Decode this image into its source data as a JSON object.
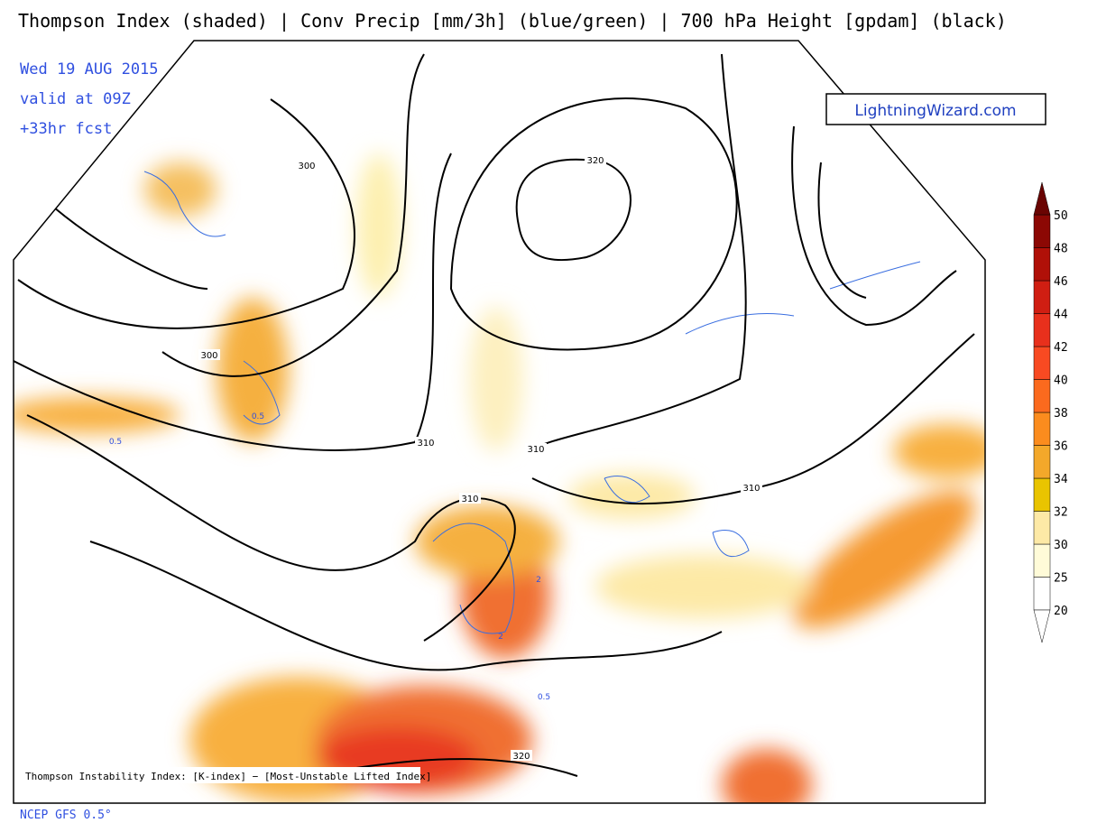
{
  "header": {
    "title": "Thompson Index (shaded) | Conv Precip [mm/3h] (blue/green) | 700 hPa Height [gpdam] (black)",
    "date": "Wed 19 AUG 2015",
    "valid": "valid at 09Z",
    "forecast": "+33hr fcst"
  },
  "logo": "LightningWizard.com",
  "legend": {
    "levels": [
      {
        "label": "20",
        "color": "#ffffff"
      },
      {
        "label": "25",
        "color": "#fffbd8"
      },
      {
        "label": "30",
        "color": "#fde9a6"
      },
      {
        "label": "32",
        "color": "#e9c400"
      },
      {
        "label": "34",
        "color": "#f3a82a"
      },
      {
        "label": "36",
        "color": "#fb8c1e"
      },
      {
        "label": "38",
        "color": "#fb6a1e"
      },
      {
        "label": "40",
        "color": "#f84a22"
      },
      {
        "label": "42",
        "color": "#e8301c"
      },
      {
        "label": "44",
        "color": "#d01e12"
      },
      {
        "label": "46",
        "color": "#b01008"
      },
      {
        "label": "48",
        "color": "#8c0804"
      },
      {
        "label": "50",
        "color": "#6a0402"
      }
    ]
  },
  "contour_labels": [
    "300",
    "300",
    "320",
    "310",
    "310",
    "310",
    "310",
    "320"
  ],
  "precip_labels": [
    "0.5",
    "0.5",
    "2",
    "2",
    "0.5"
  ],
  "map_note": "Thompson Instability Index: [K-index] − [Most-Unstable Lifted Index]",
  "footer": "NCEP GFS 0.5°"
}
